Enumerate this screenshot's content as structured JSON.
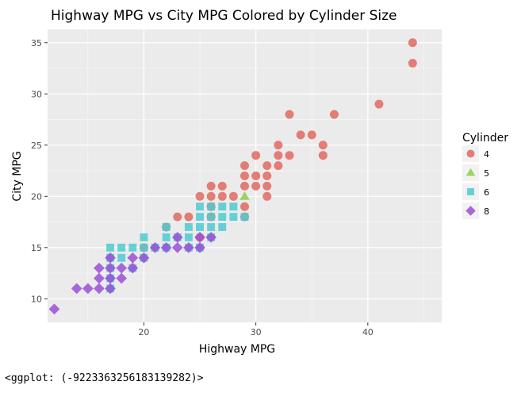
{
  "chart_data": {
    "type": "scatter",
    "title": "Highway MPG vs City MPG Colored by Cylinder Size",
    "xlabel": "Highway MPG",
    "ylabel": "City MPG",
    "xlim": [
      11.4,
      46.6
    ],
    "ylim": [
      7.7,
      36.3
    ],
    "x_ticks": [
      20,
      30,
      40
    ],
    "y_ticks": [
      10,
      15,
      20,
      25,
      30,
      35
    ],
    "grid": true,
    "legend": {
      "title": "Cylinder",
      "position": "right",
      "entries": [
        {
          "label": "4",
          "shape": "circle",
          "color": "#F8766D"
        },
        {
          "label": "5",
          "shape": "triangle",
          "color": "#7CAE00"
        },
        {
          "label": "6",
          "shape": "square",
          "color": "#00BFC4"
        },
        {
          "label": "8",
          "shape": "diamond",
          "color": "#C77CFF"
        }
      ]
    },
    "series": [
      {
        "name": "4",
        "shape": "circle",
        "color": "#E06A62",
        "points": [
          [
            44,
            35
          ],
          [
            44,
            33
          ],
          [
            41,
            29
          ],
          [
            33,
            28
          ],
          [
            37,
            28
          ],
          [
            34,
            26
          ],
          [
            35,
            26
          ],
          [
            32,
            25
          ],
          [
            36,
            25
          ],
          [
            30,
            24
          ],
          [
            32,
            24
          ],
          [
            33,
            24
          ],
          [
            36,
            24
          ],
          [
            29,
            23
          ],
          [
            31,
            23
          ],
          [
            32,
            23
          ],
          [
            29,
            22
          ],
          [
            30,
            22
          ],
          [
            31,
            22
          ],
          [
            26,
            21
          ],
          [
            27,
            21
          ],
          [
            29,
            21
          ],
          [
            30,
            21
          ],
          [
            31,
            21
          ],
          [
            25,
            20
          ],
          [
            26,
            20
          ],
          [
            27,
            20
          ],
          [
            28,
            20
          ],
          [
            31,
            20
          ],
          [
            29,
            19
          ],
          [
            23,
            18
          ],
          [
            24,
            18
          ],
          [
            26,
            19
          ],
          [
            26,
            18
          ],
          [
            29,
            18
          ],
          [
            25,
            16
          ],
          [
            22,
            17
          ],
          [
            20,
            15
          ]
        ]
      },
      {
        "name": "5",
        "shape": "triangle",
        "color": "#8CCF4A",
        "points": [
          [
            29,
            20
          ]
        ]
      },
      {
        "name": "6",
        "shape": "square",
        "color": "#4FCAD2",
        "points": [
          [
            25,
            19
          ],
          [
            26,
            19
          ],
          [
            27,
            19
          ],
          [
            28,
            19
          ],
          [
            25,
            18
          ],
          [
            26,
            18
          ],
          [
            27,
            18
          ],
          [
            28,
            18
          ],
          [
            29,
            18
          ],
          [
            22,
            17
          ],
          [
            24,
            17
          ],
          [
            25,
            17
          ],
          [
            26,
            17
          ],
          [
            27,
            17
          ],
          [
            20,
            16
          ],
          [
            22,
            16
          ],
          [
            23,
            16
          ],
          [
            24,
            16
          ],
          [
            26,
            16
          ],
          [
            17,
            15
          ],
          [
            18,
            15
          ],
          [
            19,
            15
          ],
          [
            20,
            15
          ],
          [
            21,
            15
          ],
          [
            22,
            15
          ],
          [
            24,
            15
          ],
          [
            25,
            15
          ],
          [
            17,
            14
          ],
          [
            18,
            14
          ],
          [
            20,
            14
          ],
          [
            17,
            13
          ],
          [
            19,
            13
          ],
          [
            17,
            12
          ],
          [
            17,
            11
          ]
        ]
      },
      {
        "name": "8",
        "shape": "diamond",
        "color": "#9B4FD6",
        "points": [
          [
            12,
            9
          ],
          [
            14,
            11
          ],
          [
            15,
            11
          ],
          [
            16,
            11
          ],
          [
            17,
            11
          ],
          [
            16,
            12
          ],
          [
            17,
            12
          ],
          [
            18,
            12
          ],
          [
            16,
            13
          ],
          [
            17,
            13
          ],
          [
            18,
            13
          ],
          [
            19,
            13
          ],
          [
            17,
            14
          ],
          [
            19,
            14
          ],
          [
            20,
            14
          ],
          [
            21,
            15
          ],
          [
            22,
            15
          ],
          [
            23,
            15
          ],
          [
            24,
            15
          ],
          [
            25,
            15
          ],
          [
            23,
            16
          ],
          [
            25,
            16
          ],
          [
            26,
            16
          ]
        ]
      }
    ]
  },
  "output_repr": "<ggplot: (-9223363256183139282)>"
}
